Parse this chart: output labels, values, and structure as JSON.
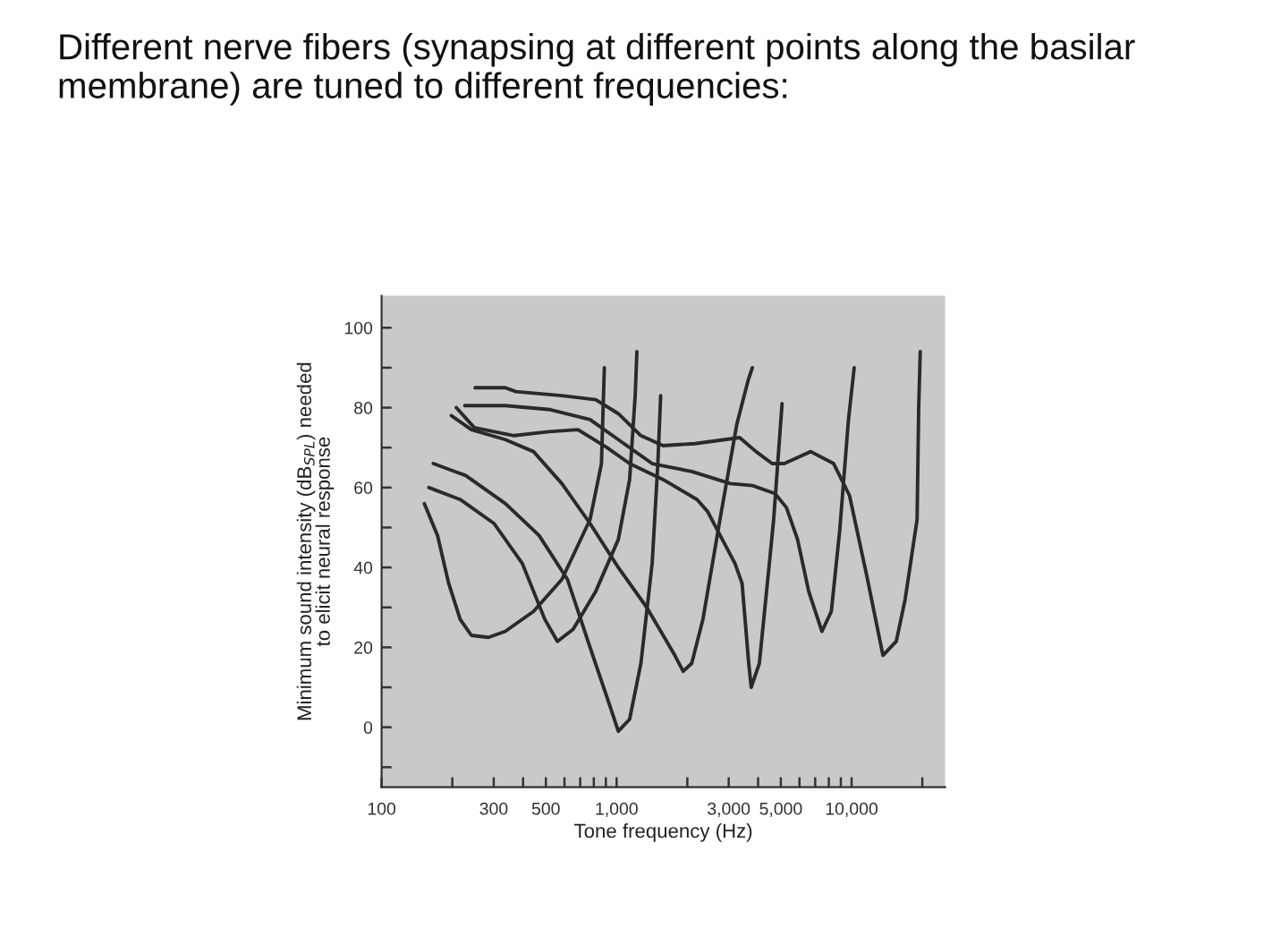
{
  "chart_data": {
    "type": "line",
    "title": "Different nerve fibers (synapsing at different points along the basilar membrane) are tuned to different frequencies:",
    "xlabel": "Tone frequency (Hz)",
    "ylabel": "Minimum sound intensity (dB$_{SPL}$) needed\nto elicit neural response",
    "log": "x",
    "grid": false,
    "legend": false,
    "marker": "none",
    "line_style": "solid",
    "xlim": [
      100,
      25000
    ],
    "xticks": [
      100,
      {
        "value": 200,
        "label": null
      },
      300,
      {
        "value": 400,
        "label": null
      },
      500,
      {
        "value": 600,
        "label": null
      },
      {
        "value": 700,
        "label": null
      },
      {
        "value": 800,
        "label": null
      },
      {
        "value": 900,
        "label": null
      },
      {
        "value": 1000,
        "label": "1,000"
      },
      {
        "value": 2000,
        "label": null
      },
      {
        "value": 3000,
        "label": "3,000"
      },
      {
        "value": 4000,
        "label": null
      },
      {
        "value": 5000,
        "label": "5,000"
      },
      {
        "value": 6000,
        "label": null
      },
      {
        "value": 7000,
        "label": null
      },
      {
        "value": 8000,
        "label": null
      },
      {
        "value": 9000,
        "label": null
      },
      {
        "value": 10000,
        "label": "10,000"
      },
      {
        "value": 20000,
        "label": null
      }
    ],
    "ylim": [
      -15,
      108
    ],
    "yticks": [
      {
        "value": -10,
        "label": null
      },
      0,
      {
        "value": 10,
        "label": null
      },
      20,
      {
        "value": 30,
        "label": null
      },
      40,
      {
        "value": 50,
        "label": null
      },
      60,
      {
        "value": 70,
        "label": null
      },
      80,
      {
        "value": 90,
        "label": null
      },
      100
    ],
    "series": [
      {
        "color": "#2a2a2a",
        "x": [
          152,
          173,
          193,
          216,
          241,
          285,
          336,
          443,
          585,
          771,
          862,
          887
        ],
        "values": [
          56,
          48,
          36,
          27,
          23,
          22.5,
          24,
          29,
          37,
          52,
          66,
          90
        ]
      },
      {
        "color": "#2a2a2a",
        "x": [
          159,
          216,
          301,
          397,
          495,
          560,
          653,
          815,
          1017,
          1136,
          1200,
          1220
        ],
        "values": [
          60,
          57,
          51,
          41,
          27,
          21.5,
          24.5,
          34,
          47,
          62,
          83,
          94
        ]
      },
      {
        "color": "#2a2a2a",
        "x": [
          166,
          228,
          336,
          468,
          618,
          771,
          941,
          1017,
          1136,
          1269,
          1417,
          1498,
          1540
        ],
        "values": [
          66,
          63,
          56,
          48,
          37,
          20,
          5,
          -1,
          2,
          16,
          41,
          66,
          83
        ]
      },
      {
        "color": "#2a2a2a",
        "x": [
          198,
          241,
          336,
          443,
          585,
          771,
          1017,
          1344,
          1769,
          1920,
          2088,
          2330,
          2754,
          3252,
          3635,
          3782
        ],
        "values": [
          78,
          74.5,
          72,
          69,
          61,
          51,
          40,
          30,
          18,
          14,
          16,
          27,
          52,
          76,
          87,
          90
        ]
      },
      {
        "color": "#2a2a2a",
        "x": [
          208,
          248,
          366,
          516,
          685,
          910,
          1136,
          1578,
          2200,
          2440,
          2760,
          3190,
          3420,
          3650,
          3740,
          4050,
          4450,
          4660,
          5060
        ],
        "values": [
          80,
          75,
          73,
          74,
          74.5,
          70,
          66,
          62,
          57,
          54,
          48,
          41,
          36,
          16,
          10,
          16,
          40,
          52,
          81
        ]
      },
      {
        "color": "#2a2a2a",
        "x": [
          226,
          336,
          523,
          771,
          1017,
          1417,
          2088,
          3050,
          3790,
          4720,
          5280,
          5890,
          6570,
          7480,
          8200,
          8910,
          9700,
          10260
        ],
        "values": [
          80.5,
          80.5,
          79.5,
          77,
          72,
          66,
          64,
          61,
          60.5,
          58.5,
          55,
          47,
          34,
          24,
          29,
          49.5,
          77,
          90
        ]
      },
      {
        "color": "#2a2a2a",
        "x": [
          250,
          336,
          373,
          585,
          815,
          1017,
          1269,
          1578,
          2154,
          3340,
          3920,
          4590,
          5170,
          6700,
          8390,
          9800,
          11600,
          13600,
          15500,
          16900,
          19000,
          19300,
          19600
        ],
        "values": [
          85,
          85,
          84,
          83,
          82,
          78.5,
          73,
          70.5,
          71,
          72.5,
          69,
          66,
          66,
          69,
          66,
          58,
          38,
          18,
          21.5,
          32,
          52,
          80,
          94
        ]
      }
    ]
  }
}
